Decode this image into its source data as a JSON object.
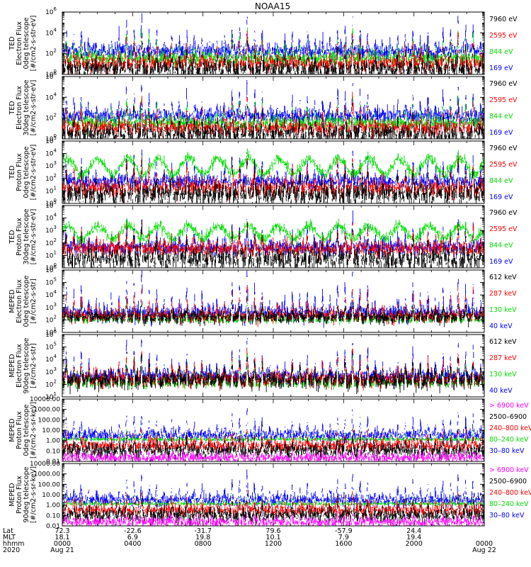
{
  "title": "NOAA15",
  "chart_data": [
    {
      "type": "line",
      "ylabel": [
        "TED",
        "Electron Flux",
        "0deg telescope",
        "[#/cm2-s-str-eV]"
      ],
      "yscale": "log",
      "ylim": [
        1,
        1000000
      ],
      "ticks": [
        {
          "label": "10",
          "exp": "0",
          "v": 1
        },
        {
          "label": "10",
          "exp": "2",
          "v": 100
        },
        {
          "label": "10",
          "exp": "4",
          "v": 10000
        },
        {
          "label": "10",
          "exp": "6",
          "v": 1000000
        }
      ],
      "series": [
        {
          "name": "7960 eV",
          "color": "#000000",
          "base": 3,
          "peak": 2500,
          "noise": 0.5
        },
        {
          "name": "2595 eV",
          "color": "#ff0000",
          "base": 10,
          "peak": 8000,
          "noise": 0.45
        },
        {
          "name": "844 eV",
          "color": "#00dd00",
          "base": 30,
          "peak": 20000,
          "noise": 0.4
        },
        {
          "name": "169 eV",
          "color": "#0000ff",
          "base": 150,
          "peak": 250000,
          "noise": 0.45
        }
      ]
    },
    {
      "type": "line",
      "ylabel": [
        "TED",
        "Electron Flux",
        "30deg telescope",
        "[#/cm2-s-str-eV]"
      ],
      "yscale": "log",
      "ylim": [
        1,
        1000000
      ],
      "ticks": [
        {
          "label": "10",
          "exp": "0",
          "v": 1
        },
        {
          "label": "10",
          "exp": "2",
          "v": 100
        },
        {
          "label": "10",
          "exp": "4",
          "v": 10000
        },
        {
          "label": "10",
          "exp": "6",
          "v": 1000000
        }
      ],
      "series": [
        {
          "name": "7960 eV",
          "color": "#000000",
          "base": 3,
          "peak": 2000,
          "noise": 0.5
        },
        {
          "name": "2595 eV",
          "color": "#ff0000",
          "base": 10,
          "peak": 7000,
          "noise": 0.45
        },
        {
          "name": "844 eV",
          "color": "#00dd00",
          "base": 30,
          "peak": 15000,
          "noise": 0.4
        },
        {
          "name": "169 eV",
          "color": "#0000ff",
          "base": 150,
          "peak": 200000,
          "noise": 0.45
        }
      ]
    },
    {
      "type": "line",
      "ylabel": [
        "TED",
        "Proton Flux",
        "0deg telescope",
        "[#/cm2-s-str-eV]"
      ],
      "yscale": "log",
      "ylim": [
        1,
        100000
      ],
      "ticks": [
        {
          "label": "10",
          "exp": "0",
          "v": 1
        },
        {
          "label": "10",
          "exp": "1",
          "v": 10
        },
        {
          "label": "10",
          "exp": "2",
          "v": 100
        },
        {
          "label": "10",
          "exp": "3",
          "v": 1000
        },
        {
          "label": "10",
          "exp": "4",
          "v": 10000
        },
        {
          "label": "10",
          "exp": "5",
          "v": 100000
        }
      ],
      "series": [
        {
          "name": "7960 eV",
          "color": "#000000",
          "base": 5,
          "peak": 3000,
          "noise": 0.5
        },
        {
          "name": "2595 eV",
          "color": "#ff0000",
          "base": 15,
          "peak": 4000,
          "noise": 0.4
        },
        {
          "name": "844 eV",
          "color": "#00dd00",
          "base": 200,
          "peak": 5000,
          "noise": 0.25
        },
        {
          "name": "169 eV",
          "color": "#0000ff",
          "base": 50,
          "peak": 20000,
          "noise": 0.35
        }
      ]
    },
    {
      "type": "line",
      "ylabel": [
        "TED",
        "Proton Flux",
        "30deg telescope",
        "[#/cm2-s-str-eV]"
      ],
      "yscale": "log",
      "ylim": [
        1,
        100000
      ],
      "ticks": [
        {
          "label": "10",
          "exp": "0",
          "v": 1
        },
        {
          "label": "10",
          "exp": "1",
          "v": 10
        },
        {
          "label": "10",
          "exp": "2",
          "v": 100
        },
        {
          "label": "10",
          "exp": "3",
          "v": 1000
        },
        {
          "label": "10",
          "exp": "4",
          "v": 10000
        },
        {
          "label": "10",
          "exp": "5",
          "v": 100000
        }
      ],
      "series": [
        {
          "name": "7960 eV",
          "color": "#000000",
          "base": 5,
          "peak": 2000,
          "noise": 0.5
        },
        {
          "name": "2595 eV",
          "color": "#ff0000",
          "base": 30,
          "peak": 3000,
          "noise": 0.35
        },
        {
          "name": "844 eV",
          "color": "#00dd00",
          "base": 200,
          "peak": 3000,
          "noise": 0.25
        },
        {
          "name": "169 eV",
          "color": "#0000ff",
          "base": 40,
          "peak": 10000,
          "noise": 0.35
        }
      ]
    },
    {
      "type": "line",
      "ylabel": [
        "MEPED",
        "Electron Flux",
        "0deg telescope",
        "[#/cm2-s-str]"
      ],
      "yscale": "log",
      "ylim": [
        10,
        1000000
      ],
      "ticks": [
        {
          "label": "10",
          "exp": "1",
          "v": 10
        },
        {
          "label": "10",
          "exp": "2",
          "v": 100
        },
        {
          "label": "10",
          "exp": "3",
          "v": 1000
        },
        {
          "label": "10",
          "exp": "4",
          "v": 10000
        },
        {
          "label": "10",
          "exp": "5",
          "v": 100000
        },
        {
          "label": "10",
          "exp": "6",
          "v": 1000000
        }
      ],
      "series": [
        {
          "name": "612 keV",
          "color": "#000000",
          "base": 150,
          "peak": 3000,
          "noise": 0.3
        },
        {
          "name": "287 keV",
          "color": "#ff0000",
          "base": 200,
          "peak": 50000,
          "noise": 0.3
        },
        {
          "name": "130 keV",
          "color": "#00dd00",
          "base": 100,
          "peak": 2000,
          "noise": 0.15
        },
        {
          "name": "40 keV",
          "color": "#0000ff",
          "base": 300,
          "peak": 500000,
          "noise": 0.4
        }
      ]
    },
    {
      "type": "line",
      "ylabel": [
        "MEPED",
        "Electron Flux",
        "90deg telescope",
        "[#/cm2-s-str]"
      ],
      "yscale": "log",
      "ylim": [
        10,
        1000000
      ],
      "ticks": [
        {
          "label": "10",
          "exp": "1",
          "v": 10
        },
        {
          "label": "10",
          "exp": "2",
          "v": 100
        },
        {
          "label": "10",
          "exp": "3",
          "v": 1000
        },
        {
          "label": "10",
          "exp": "4",
          "v": 10000
        },
        {
          "label": "10",
          "exp": "5",
          "v": 100000
        },
        {
          "label": "10",
          "exp": "6",
          "v": 1000000
        }
      ],
      "series": [
        {
          "name": "612 keV",
          "color": "#000000",
          "base": 200,
          "peak": 20000,
          "noise": 0.4
        },
        {
          "name": "287 keV",
          "color": "#ff0000",
          "base": 250,
          "peak": 50000,
          "noise": 0.35
        },
        {
          "name": "130 keV",
          "color": "#00dd00",
          "base": 120,
          "peak": 30000,
          "noise": 0.2
        },
        {
          "name": "40 keV",
          "color": "#0000ff",
          "base": 400,
          "peak": 400000,
          "noise": 0.35
        }
      ]
    },
    {
      "type": "line",
      "ylabel": [
        "MEPED",
        "Proton Flux",
        "0deg telescope",
        "[#/cm2-s-sr-keV]"
      ],
      "yscale": "log",
      "ylim": [
        0.01,
        10000
      ],
      "ticks": [
        {
          "label": "0.01",
          "v": 0.01
        },
        {
          "label": "0.10",
          "v": 0.1
        },
        {
          "label": "1.00",
          "v": 1
        },
        {
          "label": "10.00",
          "v": 10
        },
        {
          "label": "100.00",
          "v": 100
        },
        {
          "label": "1000.00",
          "v": 1000
        },
        {
          "label": "10000.00",
          "v": 10000
        }
      ],
      "series": [
        {
          "name": "> 6900 keV",
          "color": "#ff00ff",
          "base": 0.02,
          "peak": 0.08,
          "noise": 0.3
        },
        {
          "name": "2500–6900",
          "color": "#000000",
          "base": 0.1,
          "peak": 5,
          "noise": 0.4
        },
        {
          "name": "240–800 keV",
          "color": "#ff0000",
          "base": 0.3,
          "peak": 10,
          "noise": 0.35
        },
        {
          "name": "80–240 keV",
          "color": "#00dd00",
          "base": 1.3,
          "peak": 15,
          "noise": 0.1
        },
        {
          "name": "30–80 keV",
          "color": "#0000ff",
          "base": 3,
          "peak": 800,
          "noise": 0.35
        }
      ]
    },
    {
      "type": "line",
      "ylabel": [
        "MEPED",
        "Proton Flux",
        "90deg telescope",
        "[#/cm2-s-sr-keV]"
      ],
      "yscale": "log",
      "ylim": [
        0.01,
        10000
      ],
      "ticks": [
        {
          "label": "0.01",
          "v": 0.01
        },
        {
          "label": "0.10",
          "v": 0.1
        },
        {
          "label": "1.00",
          "v": 1
        },
        {
          "label": "10.00",
          "v": 10
        },
        {
          "label": "100.00",
          "v": 100
        },
        {
          "label": "1000.00",
          "v": 1000
        },
        {
          "label": "10000.00",
          "v": 10000
        }
      ],
      "series": [
        {
          "name": "> 6900 keV",
          "color": "#ff00ff",
          "base": 0.02,
          "peak": 0.1,
          "noise": 0.3
        },
        {
          "name": "2500–6900",
          "color": "#000000",
          "base": 0.1,
          "peak": 5,
          "noise": 0.4
        },
        {
          "name": "240–800 keV",
          "color": "#ff0000",
          "base": 0.3,
          "peak": 12,
          "noise": 0.35
        },
        {
          "name": "80–240 keV",
          "color": "#00dd00",
          "base": 1.3,
          "peak": 15,
          "noise": 0.1
        },
        {
          "name": "30–80 keV",
          "color": "#0000ff",
          "base": 3,
          "peak": 900,
          "noise": 0.35
        }
      ]
    }
  ],
  "xaxis": {
    "row_labels": [
      "Lat",
      "MLT",
      "hhmm",
      "2020"
    ],
    "ticks": [
      {
        "lat": "72.3",
        "mlt": "18.1",
        "hhmm": "0000",
        "date": "Aug 21"
      },
      {
        "lat": "-22.6",
        "mlt": "6.9",
        "hhmm": "0400",
        "date": ""
      },
      {
        "lat": "-31.7",
        "mlt": "19.8",
        "hhmm": "0800",
        "date": ""
      },
      {
        "lat": "79.6",
        "mlt": "10.1",
        "hhmm": "1200",
        "date": ""
      },
      {
        "lat": "-57.9",
        "mlt": "7.9",
        "hhmm": "1600",
        "date": ""
      },
      {
        "lat": "24.4",
        "mlt": "19.4",
        "hhmm": "2000",
        "date": ""
      },
      {
        "lat": "",
        "mlt": "",
        "hhmm": "0000",
        "date": "Aug 22"
      }
    ]
  }
}
